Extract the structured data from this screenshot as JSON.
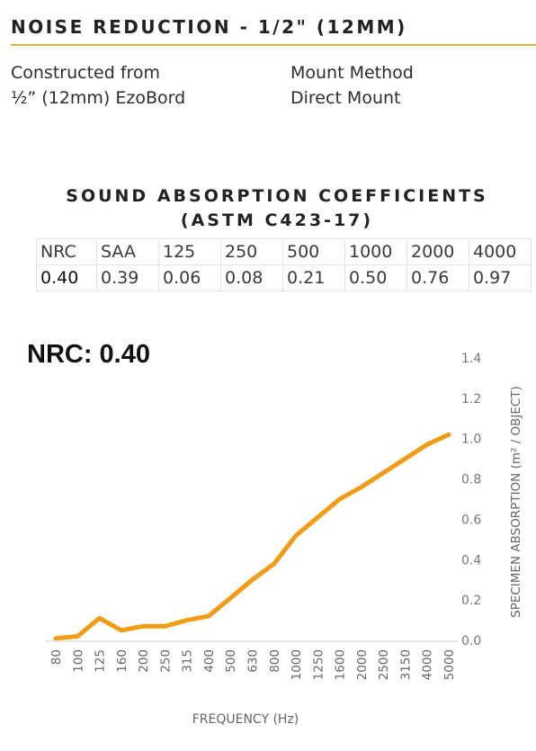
{
  "header": {
    "title": "NOISE  REDUCTION - 1/2\" (12MM)",
    "accent_color": "#e2b634"
  },
  "info": {
    "construction_label": "Constructed from",
    "construction_value": "½” (12mm) EzoBord",
    "mount_label": "Mount Method",
    "mount_value": "Direct Mount"
  },
  "coefficients": {
    "title_line1": "SOUND ABSORPTION COEFFICIENTS",
    "title_line2": "(ASTM C423-17)",
    "headers": [
      "NRC",
      "SAA",
      "125",
      "250",
      "500",
      "1000",
      "2000",
      "4000"
    ],
    "values": [
      "0.40",
      "0.39",
      "0.06",
      "0.08",
      "0.21",
      "0.50",
      "0.76",
      "0.97"
    ]
  },
  "nrc_label": "NRC: 0.40",
  "chart_data": {
    "type": "line",
    "xlabel": "FREQUENCY (Hz)",
    "ylabel": "SPECIMEN ABSORPTION (m² / OBJECT)",
    "ylim": [
      0,
      1.4
    ],
    "y_ticks": [
      "0.0",
      "0.2",
      "0.4",
      "0.6",
      "0.8",
      "1.0",
      "1.2",
      "1.4"
    ],
    "grid": false,
    "line_color": "#f19c14",
    "categories": [
      "80",
      "100",
      "125",
      "160",
      "200",
      "250",
      "315",
      "400",
      "500",
      "630",
      "800",
      "1000",
      "1250",
      "1600",
      "2000",
      "2500",
      "3150",
      "4000",
      "5000"
    ],
    "series": [
      {
        "values": [
          0.01,
          0.02,
          0.11,
          0.05,
          0.07,
          0.07,
          0.1,
          0.12,
          0.21,
          0.3,
          0.38,
          0.52,
          0.61,
          0.7,
          0.76,
          0.83,
          0.9,
          0.97,
          1.02
        ]
      }
    ]
  }
}
